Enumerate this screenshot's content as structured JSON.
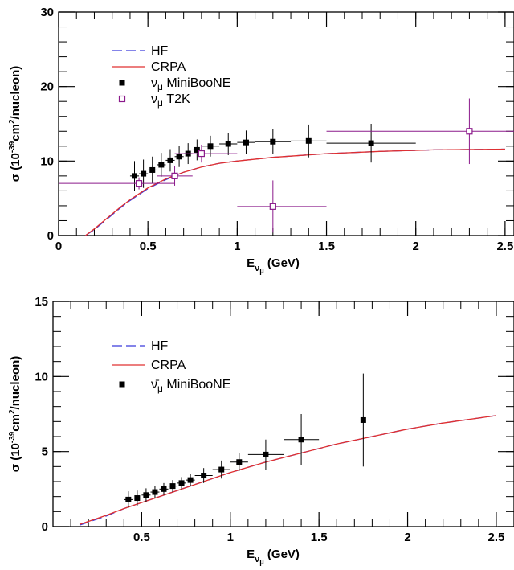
{
  "chart_data": [
    {
      "type": "line",
      "xlabel": "E",
      "xlabel_sub": "ν",
      "xlabel_subsub": "μ",
      "xlabel_unit": " (GeV)",
      "ylabel": "σ (10",
      "ylabel_exp": "-39",
      "ylabel_mid": "cm",
      "ylabel_exp2": "2",
      "ylabel_end": "/nucleon)",
      "xlim": [
        0,
        2.55
      ],
      "ylim": [
        0,
        30
      ],
      "xticks": [
        0,
        0.5,
        1,
        1.5,
        2,
        2.5
      ],
      "xtick_labels": [
        "0",
        "0.5",
        "1",
        "1.5",
        "2",
        "2.5"
      ],
      "yticks": [
        0,
        10,
        20,
        30
      ],
      "ytick_labels": [
        "0",
        "10",
        "20",
        "30"
      ],
      "grid": false,
      "legend_position": "top-left",
      "series": [
        {
          "name": "HF",
          "style": "dashed",
          "color": "#3a3adc",
          "x": [
            0.15,
            0.2,
            0.25,
            0.3,
            0.35,
            0.4,
            0.45,
            0.5,
            0.6,
            0.7,
            0.8,
            0.9,
            1.0,
            1.2,
            1.5,
            1.8,
            2.1,
            2.5
          ],
          "y": [
            0.0,
            0.8,
            1.8,
            2.8,
            3.8,
            4.7,
            5.5,
            6.3,
            7.5,
            8.5,
            9.2,
            9.7,
            10.0,
            10.5,
            11.0,
            11.3,
            11.5,
            11.6
          ]
        },
        {
          "name": "CRPA",
          "style": "solid",
          "color": "#e03030",
          "x": [
            0.15,
            0.2,
            0.25,
            0.3,
            0.35,
            0.4,
            0.45,
            0.5,
            0.6,
            0.7,
            0.8,
            0.9,
            1.0,
            1.2,
            1.5,
            1.8,
            2.1,
            2.5
          ],
          "y": [
            0.0,
            0.9,
            1.9,
            2.9,
            3.9,
            4.8,
            5.6,
            6.4,
            7.6,
            8.5,
            9.2,
            9.7,
            10.0,
            10.5,
            11.0,
            11.3,
            11.5,
            11.6
          ]
        },
        {
          "name": "ν_μ MiniBooNE",
          "legend_main": "ν",
          "legend_sub": "μ",
          "legend_rest": " MiniBooNE",
          "marker": "filled-square",
          "color": "#000000",
          "x": [
            0.425,
            0.475,
            0.525,
            0.575,
            0.625,
            0.675,
            0.725,
            0.775,
            0.85,
            0.95,
            1.05,
            1.2,
            1.4,
            1.75
          ],
          "xerr": [
            0.025,
            0.025,
            0.025,
            0.025,
            0.025,
            0.025,
            0.025,
            0.025,
            0.05,
            0.05,
            0.05,
            0.1,
            0.1,
            0.25
          ],
          "y": [
            8.0,
            8.3,
            8.8,
            9.5,
            10.1,
            10.6,
            11.0,
            11.5,
            12.0,
            12.3,
            12.5,
            12.6,
            12.7,
            12.4
          ],
          "yerr": [
            2.0,
            1.9,
            1.8,
            1.6,
            1.5,
            1.4,
            1.4,
            1.4,
            1.4,
            1.5,
            1.6,
            1.7,
            2.2,
            2.6
          ]
        },
        {
          "name": "ν_μ T2K",
          "legend_main": "ν",
          "legend_sub": "μ",
          "legend_rest": " T2K",
          "marker": "open-square",
          "color": "#8b1a8b",
          "x": [
            0.45,
            0.65,
            0.8,
            1.2,
            2.3
          ],
          "xerr_lo": [
            0.45,
            0.1,
            0.15,
            0.2,
            0.8
          ],
          "xerr_hi": [
            0.2,
            0.1,
            0.2,
            0.3,
            0.25
          ],
          "y": [
            7.0,
            8.0,
            11.0,
            3.9,
            14.0
          ],
          "yerr": [
            0.8,
            1.3,
            1.2,
            3.5,
            4.4
          ]
        }
      ]
    },
    {
      "type": "line",
      "xlabel": "E",
      "xlabel_sub": "ν̄",
      "xlabel_subsub": "μ",
      "xlabel_unit": " (GeV)",
      "ylabel": "σ (10",
      "ylabel_exp": "-39",
      "ylabel_mid": "cm",
      "ylabel_exp2": "2",
      "ylabel_end": "/nucleon)",
      "xlim": [
        0,
        2.6
      ],
      "ylim": [
        0,
        15
      ],
      "xticks": [
        0.5,
        1,
        1.5,
        2,
        2.5
      ],
      "xtick_labels": [
        "0.5",
        "1",
        "1.5",
        "2",
        "2.5"
      ],
      "yticks": [
        0,
        5,
        10,
        15
      ],
      "ytick_labels": [
        "0",
        "5",
        "10",
        "15"
      ],
      "grid": false,
      "legend_position": "top-left",
      "series": [
        {
          "name": "HF",
          "style": "dashed",
          "color": "#3a3adc",
          "x": [
            0.15,
            0.2,
            0.3,
            0.4,
            0.5,
            0.6,
            0.7,
            0.8,
            1.0,
            1.2,
            1.4,
            1.6,
            1.8,
            2.0,
            2.2,
            2.5
          ],
          "y": [
            0.1,
            0.3,
            0.7,
            1.2,
            1.6,
            2.0,
            2.4,
            2.8,
            3.6,
            4.3,
            4.9,
            5.5,
            6.0,
            6.5,
            6.9,
            7.4
          ]
        },
        {
          "name": "CRPA",
          "style": "solid",
          "color": "#e03030",
          "x": [
            0.15,
            0.2,
            0.3,
            0.4,
            0.5,
            0.6,
            0.7,
            0.8,
            1.0,
            1.2,
            1.4,
            1.6,
            1.8,
            2.0,
            2.2,
            2.5
          ],
          "y": [
            0.15,
            0.35,
            0.75,
            1.2,
            1.6,
            2.0,
            2.4,
            2.8,
            3.6,
            4.3,
            4.9,
            5.5,
            6.0,
            6.5,
            6.9,
            7.4
          ]
        },
        {
          "name": "ν̄_μ MiniBooNE",
          "legend_main": "ν̄",
          "legend_sub": "μ",
          "legend_rest": " MiniBooNE",
          "marker": "filled-square",
          "color": "#000000",
          "x": [
            0.425,
            0.475,
            0.525,
            0.575,
            0.625,
            0.675,
            0.725,
            0.775,
            0.85,
            0.95,
            1.05,
            1.2,
            1.4,
            1.75
          ],
          "xerr": [
            0.025,
            0.025,
            0.025,
            0.025,
            0.025,
            0.025,
            0.025,
            0.025,
            0.05,
            0.05,
            0.05,
            0.1,
            0.1,
            0.25
          ],
          "y": [
            1.8,
            1.9,
            2.1,
            2.3,
            2.5,
            2.7,
            2.9,
            3.1,
            3.4,
            3.8,
            4.3,
            4.8,
            5.8,
            7.1
          ],
          "yerr": [
            0.55,
            0.5,
            0.45,
            0.4,
            0.4,
            0.4,
            0.4,
            0.4,
            0.5,
            0.6,
            0.6,
            1.0,
            1.7,
            3.1
          ]
        }
      ]
    }
  ]
}
